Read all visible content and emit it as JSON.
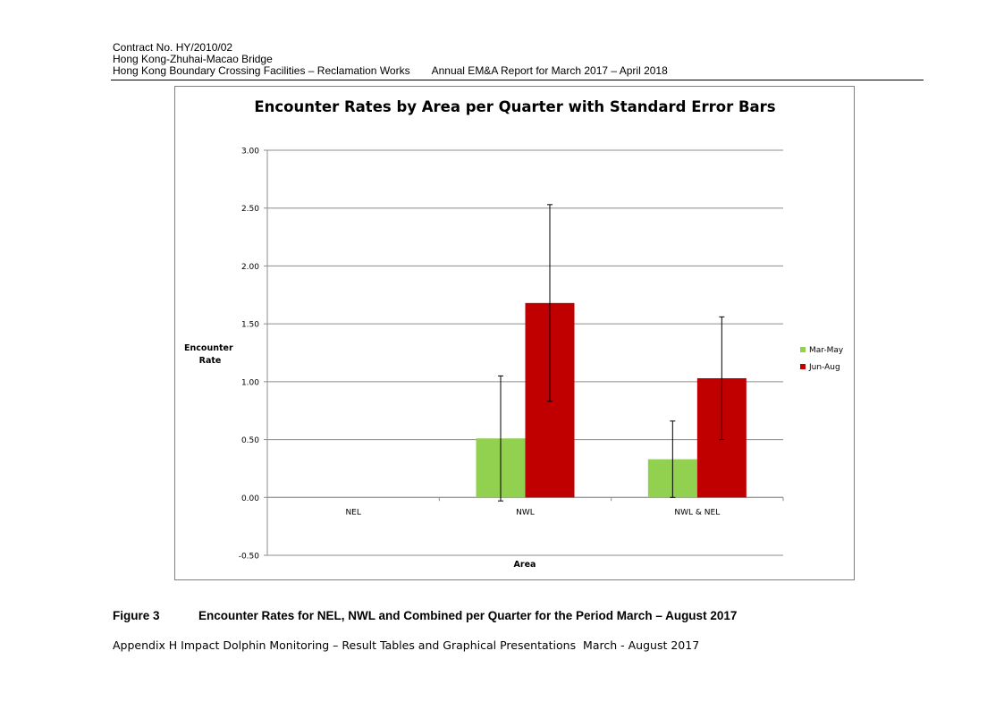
{
  "header": {
    "contract": "Contract No. HY/2010/02",
    "project": "Hong Kong-Zhuhai-Macao Bridge",
    "works": "Hong Kong Boundary Crossing Facilities – Reclamation Works",
    "report": "Annual EM&A Report for March 2017 – April 2018"
  },
  "chart_data": {
    "type": "bar",
    "title": "Encounter Rates by Area per Quarter with Standard Error Bars",
    "xlabel": "Area",
    "ylabel": "Encounter Rate",
    "categories": [
      "NEL",
      "NWL",
      "NWL & NEL"
    ],
    "series": [
      {
        "name": "Mar-May",
        "color": "#92d050",
        "values": [
          0,
          0.51,
          0.33
        ],
        "errors": [
          0,
          0.54,
          0.33
        ]
      },
      {
        "name": "Jun-Aug",
        "color": "#c00000",
        "values": [
          0,
          1.68,
          1.03
        ],
        "errors": [
          0,
          0.85,
          0.53
        ]
      }
    ],
    "ylim": [
      -0.5,
      3.0
    ],
    "yticks": [
      "3.00",
      "2.50",
      "2.00",
      "1.50",
      "1.00",
      "0.50",
      "0.00",
      "-0.50"
    ],
    "grid": true,
    "legend": "right"
  },
  "caption": {
    "number": "Figure 3",
    "text": "Encounter Rates for NEL, NWL and Combined per Quarter for the Period March – August 2017"
  },
  "footer": "Appendix H Impact Dolphin Monitoring – Result Tables and Graphical Presentations  March - August 2017"
}
